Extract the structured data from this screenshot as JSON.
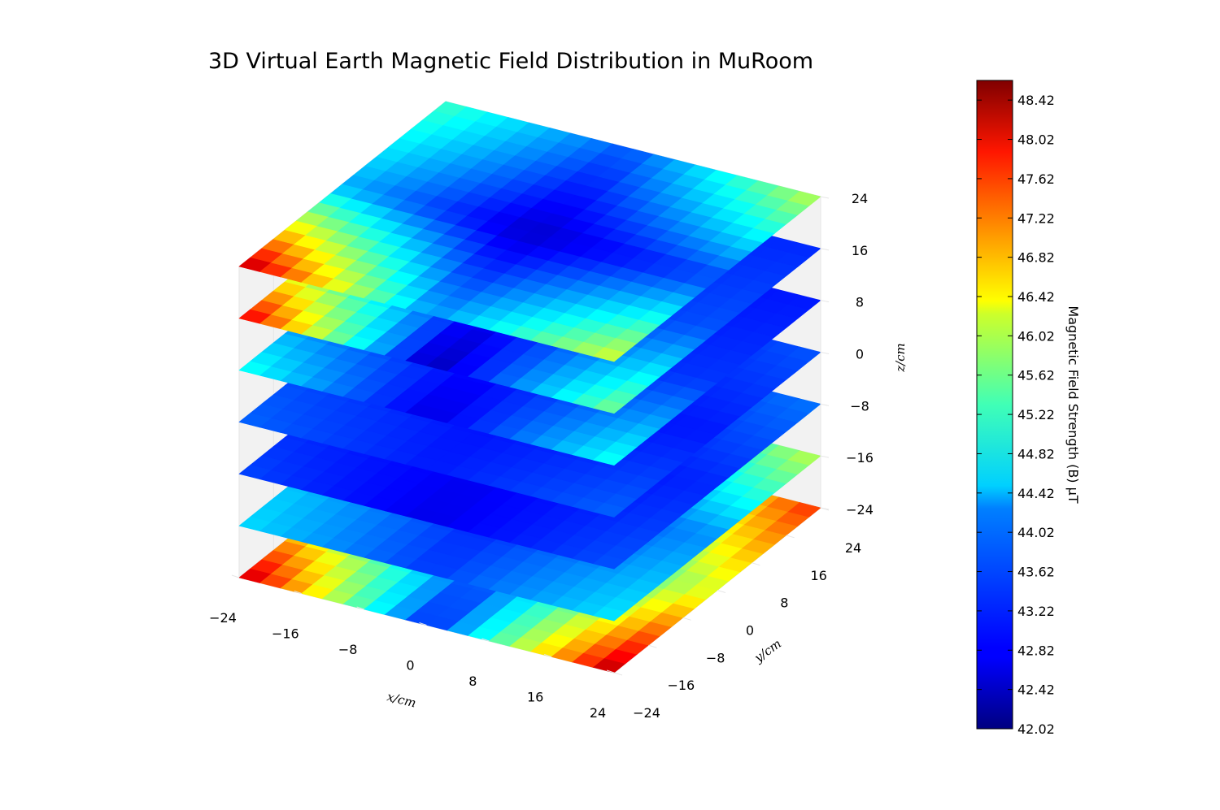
{
  "chart_data": {
    "type": "heatmap",
    "title": "3D Virtual Earth Magnetic Field Distribution in MuRoom",
    "xlabel": "x/cm",
    "ylabel": "y/cm",
    "zlabel": "z/cm",
    "xlim": [
      -24,
      24
    ],
    "ylim": [
      -24,
      24
    ],
    "zlim": [
      -24,
      24
    ],
    "x_ticks": [
      "−24",
      "−16",
      "−8",
      "0",
      "8",
      "16",
      "24"
    ],
    "y_ticks": [
      "−24",
      "−16",
      "−8",
      "0",
      "8",
      "16",
      "24"
    ],
    "z_ticks": [
      "−24",
      "−16",
      "−8",
      "0",
      "8",
      "16",
      "24"
    ],
    "grid": true,
    "colormap": "jet",
    "colorbar": {
      "label": "Magnetic Field Strength (B) μT",
      "min": 42.02,
      "max": 48.62,
      "ticks": [
        "42.02",
        "42.42",
        "42.82",
        "43.22",
        "43.62",
        "44.02",
        "44.42",
        "44.82",
        "45.22",
        "45.62",
        "46.02",
        "46.42",
        "46.82",
        "47.22",
        "47.62",
        "48.02",
        "48.42"
      ]
    },
    "grid_coords": [
      -24,
      0,
      24
    ],
    "slices": [
      {
        "z": -24,
        "values": [
          [
            48.4,
            45.2,
            44.2
          ],
          [
            43.0,
            43.4,
            44.8
          ],
          [
            48.5,
            46.0,
            47.6
          ]
        ]
      },
      {
        "z": -16,
        "values": [
          [
            44.3,
            44.0,
            45.4
          ],
          [
            43.2,
            43.0,
            43.6
          ],
          [
            44.4,
            43.8,
            45.8
          ]
        ]
      },
      {
        "z": -8,
        "values": [
          [
            43.3,
            43.0,
            44.6
          ],
          [
            42.7,
            42.8,
            43.2
          ],
          [
            43.4,
            43.1,
            43.6
          ]
        ]
      },
      {
        "z": 0,
        "values": [
          [
            43.5,
            43.2,
            43.5
          ],
          [
            43.0,
            42.9,
            43.0
          ],
          [
            43.5,
            43.0,
            43.4
          ]
        ]
      },
      {
        "z": 8,
        "values": [
          [
            44.7,
            43.2,
            43.3
          ],
          [
            42.6,
            43.0,
            42.9
          ],
          [
            44.7,
            43.2,
            43.0
          ]
        ]
      },
      {
        "z": 16,
        "values": [
          [
            48.2,
            44.2,
            43.2
          ],
          [
            42.3,
            43.0,
            43.1
          ],
          [
            45.4,
            43.4,
            43.1
          ]
        ]
      },
      {
        "z": 24,
        "values": [
          [
            48.5,
            44.0,
            44.9
          ],
          [
            43.8,
            42.5,
            43.4
          ],
          [
            46.0,
            43.3,
            45.8
          ]
        ]
      }
    ]
  }
}
